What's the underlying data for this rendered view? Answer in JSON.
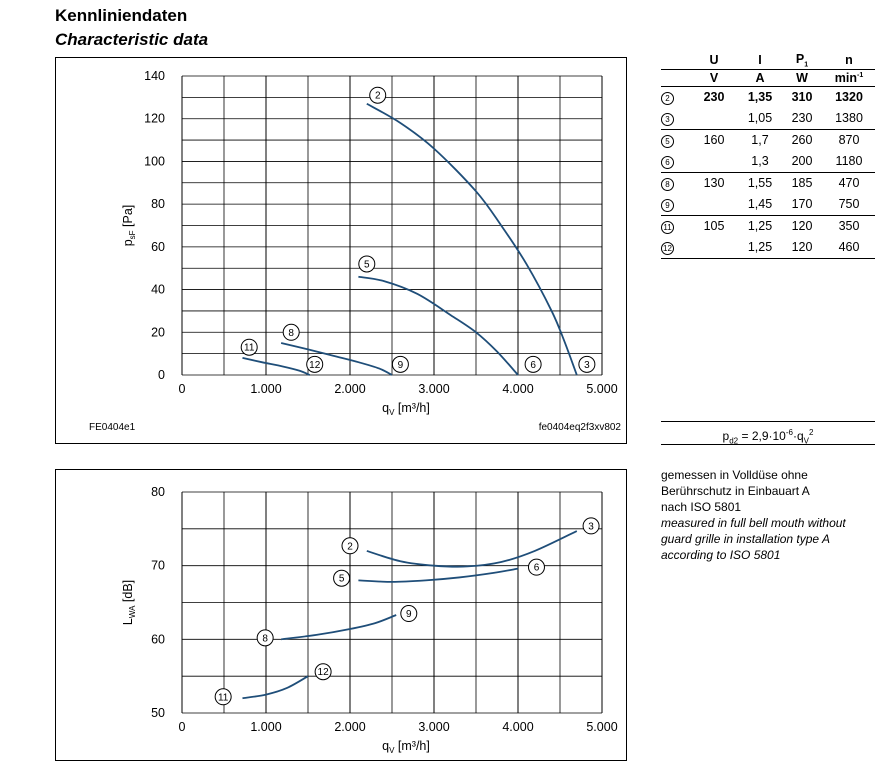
{
  "header": {
    "title_de": "Kennliniendaten",
    "title_en": "Characteristic data"
  },
  "chart_data": [
    {
      "type": "line",
      "xlabel": "q",
      "xlabel_sub": "V",
      "xlabel_unit": " [m³/h]",
      "ylabel": "p",
      "ylabel_sub": "sF",
      "ylabel_unit": " [Pa]",
      "xlim": [
        0,
        5000
      ],
      "ylim": [
        0,
        140
      ],
      "x_ticks": [
        0,
        1000,
        2000,
        3000,
        4000,
        5000
      ],
      "x_tick_labels": [
        "0",
        "1.000",
        "2.000",
        "3.000",
        "4.000",
        "5.000"
      ],
      "y_ticks": [
        0,
        20,
        40,
        60,
        80,
        100,
        120,
        140
      ],
      "y_tick_labels": [
        "0",
        "20",
        "40",
        "60",
        "80",
        "100",
        "120",
        "140"
      ],
      "grid": true,
      "footer_left": "FE0404e1",
      "footer_right": "fe0404eq2f3xv802",
      "series": [
        {
          "id": "2",
          "x": [
            2200,
            2600,
            3000,
            3500,
            3800,
            4100,
            4400,
            4550,
            4700
          ],
          "y": [
            127,
            118,
            106,
            86,
            70,
            52,
            30,
            16,
            0
          ],
          "label_at": [
            2330,
            131
          ]
        },
        {
          "id": "3",
          "x": [],
          "y": [],
          "label_at": [
            4820,
            5
          ]
        },
        {
          "id": "5",
          "x": [
            2100,
            2400,
            2800,
            3200,
            3500,
            3750,
            4000
          ],
          "y": [
            46,
            44,
            38,
            28,
            20,
            11,
            0
          ],
          "label_at": [
            2200,
            52
          ]
        },
        {
          "id": "6",
          "x": [],
          "y": [],
          "label_at": [
            4180,
            5
          ]
        },
        {
          "id": "8",
          "x": [
            1180,
            1500,
            1800,
            2100,
            2350,
            2500
          ],
          "y": [
            15,
            12,
            9,
            6,
            3,
            0
          ],
          "label_at": [
            1300,
            20
          ]
        },
        {
          "id": "9",
          "x": [],
          "y": [],
          "label_at": [
            2600,
            5
          ]
        },
        {
          "id": "11",
          "x": [
            720,
            950,
            1200,
            1400,
            1520
          ],
          "y": [
            8,
            6,
            4,
            2,
            0
          ],
          "label_at": [
            800,
            13
          ]
        },
        {
          "id": "12",
          "x": [],
          "y": [],
          "label_at": [
            1580,
            5
          ]
        }
      ]
    },
    {
      "type": "line",
      "xlabel": "q",
      "xlabel_sub": "V",
      "xlabel_unit": " [m³/h]",
      "ylabel": "L",
      "ylabel_sub": "WA",
      "ylabel_unit": " [dB]",
      "xlim": [
        0,
        5000
      ],
      "ylim": [
        50,
        80
      ],
      "x_ticks": [
        0,
        1000,
        2000,
        3000,
        4000,
        5000
      ],
      "x_tick_labels": [
        "0",
        "1.000",
        "2.000",
        "3.000",
        "4.000",
        "5.000"
      ],
      "y_ticks": [
        50,
        60,
        70,
        80
      ],
      "y_tick_labels": [
        "50",
        "60",
        "70",
        "80"
      ],
      "grid": true,
      "series": [
        {
          "id": "2",
          "x": [
            2200,
            2600,
            3000,
            3400,
            3800,
            4200,
            4700
          ],
          "y": [
            72,
            70.6,
            70,
            69.9,
            70.5,
            72,
            74.7
          ],
          "label_at": [
            2000,
            72.7
          ],
          "end_label_id": "3",
          "end_label_at": [
            4870,
            75.4
          ]
        },
        {
          "id": "5",
          "x": [
            2100,
            2500,
            2900,
            3300,
            3700,
            4000
          ],
          "y": [
            68,
            67.8,
            68,
            68.4,
            69,
            69.6
          ],
          "label_at": [
            1900,
            68.3
          ],
          "end_label_id": "6",
          "end_label_at": [
            4220,
            69.8
          ]
        },
        {
          "id": "8",
          "x": [
            1180,
            1600,
            2000,
            2300,
            2550
          ],
          "y": [
            60,
            60.6,
            61.4,
            62.2,
            63.3
          ],
          "label_at": [
            990,
            60.2
          ],
          "end_label_id": "9",
          "end_label_at": [
            2700,
            63.5
          ]
        },
        {
          "id": "11",
          "x": [
            720,
            1000,
            1250,
            1500
          ],
          "y": [
            52,
            52.5,
            53.4,
            55
          ],
          "label_at": [
            490,
            52.2
          ],
          "end_label_id": "12",
          "end_label_at": [
            1680,
            55.6
          ]
        }
      ]
    }
  ],
  "spec_table": {
    "headers": [
      "U",
      "I",
      "P",
      "n"
    ],
    "p_sub": "1",
    "units": [
      "V",
      "A",
      "W",
      "min"
    ],
    "n_unit_sup": "-1",
    "rows": [
      {
        "id": "2",
        "U": "230",
        "I": "1,35",
        "P": "310",
        "n": "1320",
        "bold": true
      },
      {
        "id": "3",
        "U": "",
        "I": "1,05",
        "P": "230",
        "n": "1380"
      },
      {
        "id": "5",
        "U": "160",
        "I": "1,7",
        "P": "260",
        "n": "870"
      },
      {
        "id": "6",
        "U": "",
        "I": "1,3",
        "P": "200",
        "n": "1180"
      },
      {
        "id": "8",
        "U": "130",
        "I": "1,55",
        "P": "185",
        "n": "470"
      },
      {
        "id": "9",
        "U": "",
        "I": "1,45",
        "P": "170",
        "n": "750"
      },
      {
        "id": "11",
        "U": "105",
        "I": "1,25",
        "P": "120",
        "n": "350"
      },
      {
        "id": "12",
        "U": "",
        "I": "1,25",
        "P": "120",
        "n": "460"
      }
    ]
  },
  "formula": {
    "lhs": "p",
    "lhs_sub": "d2",
    "mid": " = 2,9·10",
    "exp": "-6",
    "mid2": "·q",
    "q_sub": "V",
    "q_sup": "2"
  },
  "note": {
    "de_lines": [
      "gemessen in Volldüse ohne",
      "Berührschutz in Einbauart A",
      "nach ISO 5801"
    ],
    "en_lines": [
      "measured in full bell mouth without",
      "guard grille in installation type A",
      "according to ISO 5801"
    ]
  },
  "colors": {
    "curve": "#1f4e79",
    "grid": "#000000"
  }
}
